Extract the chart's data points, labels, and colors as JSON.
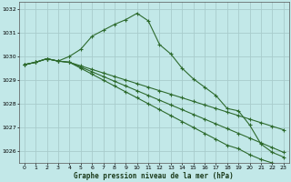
{
  "title": "Graphe pression niveau de la mer (hPa)",
  "background_color": "#c2e8e8",
  "grid_color": "#a8cccc",
  "line_color": "#2d6a2d",
  "xlim": [
    -0.5,
    23.5
  ],
  "ylim": [
    1025.5,
    1032.3
  ],
  "yticks": [
    1026,
    1027,
    1028,
    1029,
    1030,
    1031,
    1032
  ],
  "xticks": [
    0,
    1,
    2,
    3,
    4,
    5,
    6,
    7,
    8,
    9,
    10,
    11,
    12,
    13,
    14,
    15,
    16,
    17,
    18,
    19,
    20,
    21,
    22,
    23
  ],
  "series": [
    [
      1029.65,
      1029.75,
      1029.9,
      1029.8,
      1030.0,
      1030.3,
      1030.85,
      1031.1,
      1031.35,
      1031.55,
      1031.82,
      1031.5,
      1030.5,
      1030.1,
      1029.5,
      1029.05,
      1028.7,
      1028.35,
      1027.8,
      1027.7,
      1027.1,
      1026.3,
      1025.95,
      1025.75
    ],
    [
      1029.65,
      1029.75,
      1029.9,
      1029.8,
      1029.75,
      1029.6,
      1029.45,
      1029.3,
      1029.15,
      1029.0,
      1028.85,
      1028.7,
      1028.55,
      1028.4,
      1028.25,
      1028.1,
      1027.95,
      1027.8,
      1027.65,
      1027.5,
      1027.35,
      1027.2,
      1027.05,
      1026.9
    ],
    [
      1029.65,
      1029.75,
      1029.9,
      1029.8,
      1029.75,
      1029.55,
      1029.35,
      1029.15,
      1028.95,
      1028.75,
      1028.55,
      1028.35,
      1028.15,
      1027.95,
      1027.75,
      1027.55,
      1027.35,
      1027.15,
      1026.95,
      1026.75,
      1026.55,
      1026.35,
      1026.15,
      1025.95
    ],
    [
      1029.65,
      1029.75,
      1029.9,
      1029.8,
      1029.75,
      1029.5,
      1029.25,
      1029.0,
      1028.75,
      1028.5,
      1028.25,
      1028.0,
      1027.75,
      1027.5,
      1027.25,
      1027.0,
      1026.75,
      1026.5,
      1026.25,
      1026.1,
      1025.85,
      1025.65,
      1025.5,
      1025.35
    ]
  ]
}
